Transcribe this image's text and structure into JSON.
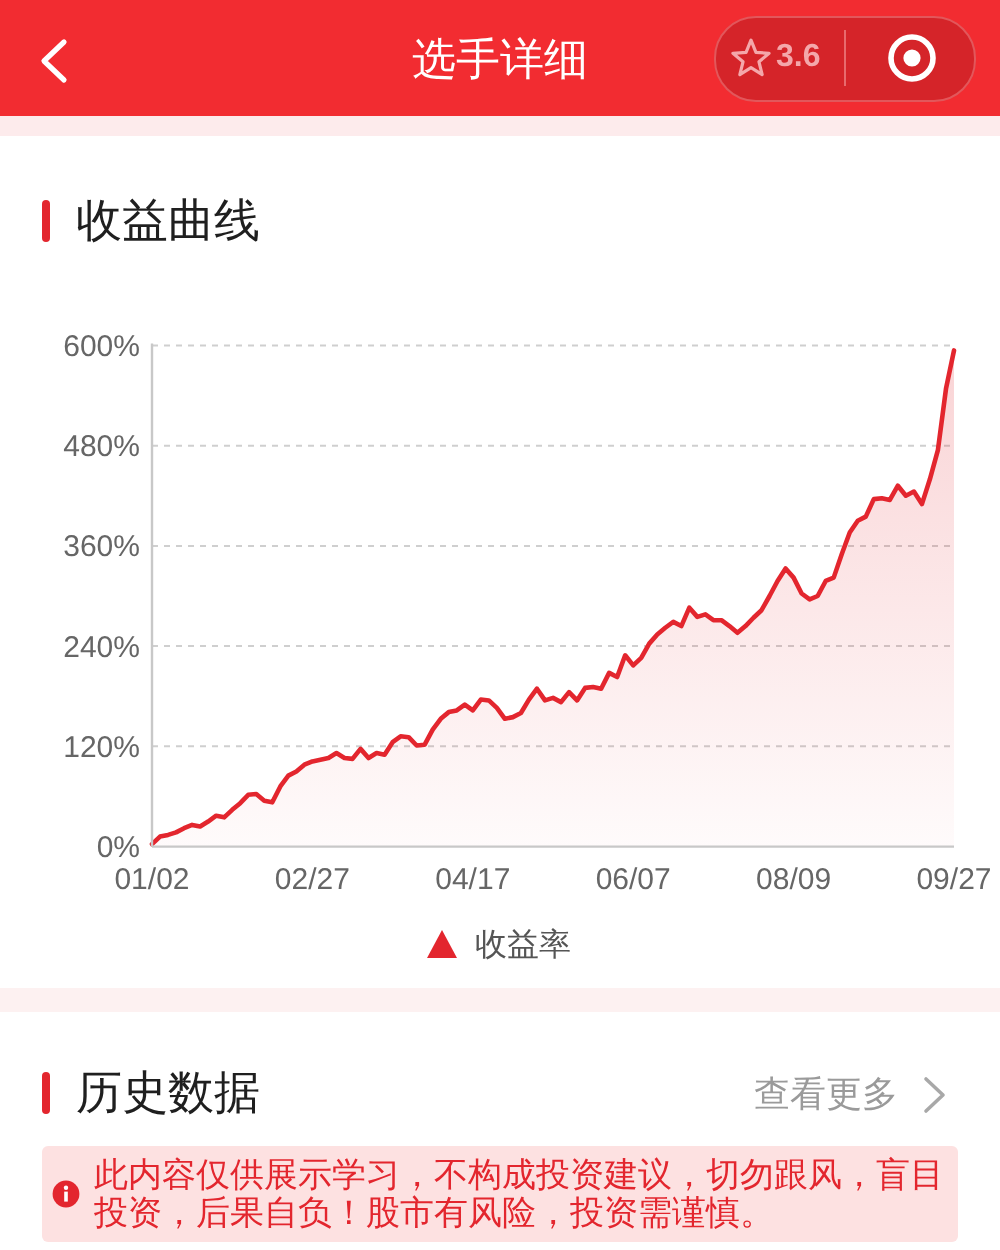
{
  "chart_data": {
    "type": "area",
    "title": "收益曲线",
    "categories": [
      "01/02",
      null,
      null,
      null,
      null,
      null,
      null,
      null,
      null,
      null,
      null,
      null,
      null,
      null,
      null,
      null,
      null,
      null,
      null,
      null,
      "02/27",
      null,
      null,
      null,
      null,
      null,
      null,
      null,
      null,
      null,
      null,
      null,
      null,
      null,
      null,
      null,
      null,
      null,
      null,
      null,
      "04/17",
      null,
      null,
      null,
      null,
      null,
      null,
      null,
      null,
      null,
      null,
      null,
      null,
      null,
      null,
      null,
      null,
      null,
      null,
      null,
      "06/07",
      null,
      null,
      null,
      null,
      null,
      null,
      null,
      null,
      null,
      null,
      null,
      null,
      null,
      null,
      null,
      null,
      null,
      null,
      null,
      "08/09",
      null,
      null,
      null,
      null,
      null,
      null,
      null,
      null,
      null,
      null,
      null,
      null,
      null,
      null,
      null,
      null,
      null,
      null,
      null,
      "09/27"
    ],
    "series": [
      {
        "name": "收益率",
        "color": "#e3262e",
        "values": [
          3,
          12,
          14,
          17,
          22,
          26,
          24,
          30,
          37,
          35,
          44,
          52,
          62,
          63,
          55,
          53,
          72,
          85,
          90,
          98,
          102,
          104,
          106,
          112,
          106,
          105,
          117,
          106,
          112,
          110,
          125,
          132,
          131,
          121,
          122,
          140,
          153,
          161,
          163,
          170,
          163,
          176,
          175,
          166,
          153,
          155,
          160,
          176,
          189,
          175,
          178,
          173,
          185,
          175,
          190,
          191,
          189,
          208,
          203,
          229,
          217,
          226,
          243,
          254,
          262,
          269,
          264,
          286,
          275,
          278,
          271,
          271,
          264,
          256,
          264,
          274,
          283,
          300,
          318,
          333,
          322,
          303,
          296,
          300,
          318,
          322,
          350,
          376,
          390,
          395,
          416,
          417,
          415,
          432,
          420,
          425,
          410,
          440,
          475,
          548,
          594
        ]
      }
    ],
    "ylim": [
      0,
      600
    ],
    "yticks": [
      {
        "value": 0,
        "label": "0%"
      },
      {
        "value": 120,
        "label": "120%"
      },
      {
        "value": 240,
        "label": "240%"
      },
      {
        "value": 360,
        "label": "360%"
      },
      {
        "value": 480,
        "label": "480%"
      },
      {
        "value": 600,
        "label": "600%"
      }
    ],
    "grid": "y",
    "legend": "bottom",
    "annotations": [
      "选手详细",
      "3.6",
      "历史数据",
      "查看更多",
      "此内容仅供展示学习，不构成投资建议，切勿跟风，盲目投资，后果自负！股市有风险，投资需谨慎。"
    ]
  }
}
